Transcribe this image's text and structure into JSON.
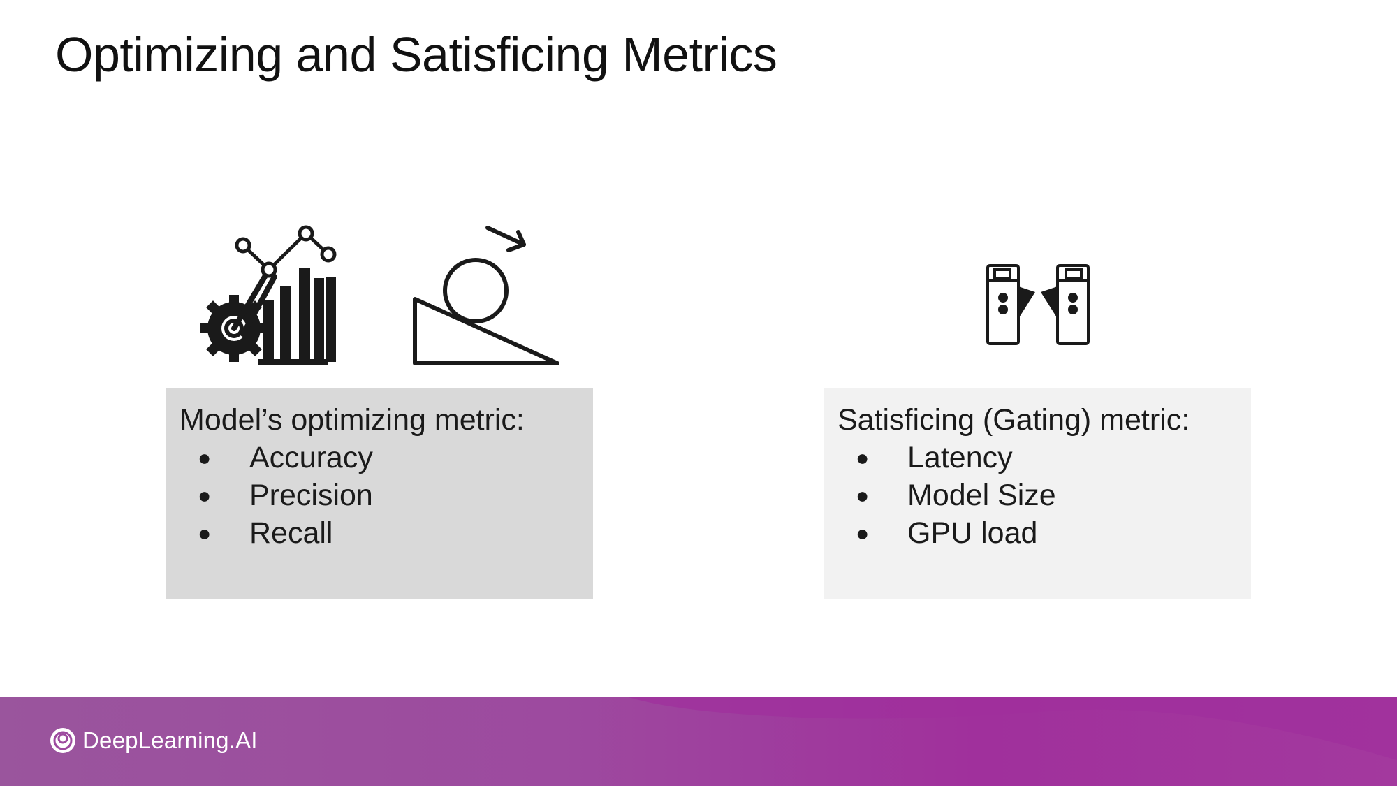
{
  "slide": {
    "title": "Optimizing and Satisficing Metrics"
  },
  "icons": {
    "optimizing_chart": "gear-with-line-chart-and-bars",
    "rolling_ball": "ball-rolling-down-slope",
    "gate": "turnstile-gate"
  },
  "optimizing": {
    "heading": "Model’s optimizing metric:",
    "items": [
      "Accuracy",
      "Precision",
      "Recall"
    ]
  },
  "satisficing": {
    "heading": "Satisficing (Gating) metric:",
    "items": [
      "Latency",
      "Model Size",
      "GPU load"
    ]
  },
  "bullet_char": "●",
  "footer": {
    "brand": "DeepLearning.AI"
  },
  "colors": {
    "optimizing_card": "#d9d9d9",
    "satisficing_card": "#f2f2f2",
    "footer_purple": "#9d3f9e"
  }
}
